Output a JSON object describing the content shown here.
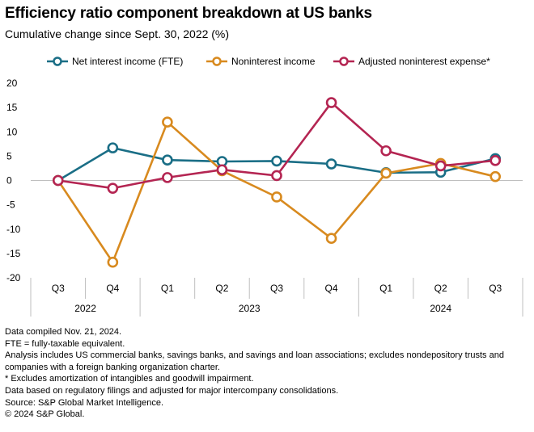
{
  "header": {
    "title": "Efficiency ratio component breakdown at US banks",
    "subtitle": "Cumulative change since Sept. 30, 2022 (%)"
  },
  "chart_data": {
    "type": "line",
    "title": "Efficiency ratio component breakdown at US banks",
    "subtitle": "Cumulative change since Sept. 30, 2022 (%)",
    "categories": [
      "Q3",
      "Q4",
      "Q1",
      "Q2",
      "Q3",
      "Q4",
      "Q1",
      "Q2",
      "Q3"
    ],
    "category_groups": [
      {
        "label": "2022",
        "count": 2
      },
      {
        "label": "2023",
        "count": 4
      },
      {
        "label": "2024",
        "count": 3
      }
    ],
    "ylim": [
      -20,
      20
    ],
    "yticks": [
      20,
      15,
      10,
      5,
      0,
      -5,
      -10,
      -15,
      -20
    ],
    "legend_position": "top",
    "grid": false,
    "series": [
      {
        "name": "Net interest income (FTE)",
        "color": "#1a6e86",
        "values": [
          0,
          6.7,
          4.2,
          3.9,
          4.0,
          3.4,
          1.6,
          1.7,
          4.5
        ]
      },
      {
        "name": "Noninterest income",
        "color": "#d88a1f",
        "values": [
          0,
          -16.8,
          12.0,
          2.0,
          -3.4,
          -11.9,
          1.5,
          3.5,
          0.8
        ]
      },
      {
        "name": "Adjusted noninterest expense*",
        "color": "#b42552",
        "values": [
          0,
          -1.6,
          0.6,
          2.2,
          1.0,
          16.0,
          6.1,
          3.0,
          4.1
        ]
      }
    ]
  },
  "notes": [
    "Data compiled Nov. 21, 2024.",
    "FTE = fully-taxable equivalent.",
    "Analysis includes US commercial banks, savings banks, and savings and loan associations; excludes nondepository trusts and companies with a foreign banking organization charter.",
    "* Excludes amortization of intangibles and goodwill impairment.",
    "Data based on regulatory filings and adjusted for major intercompany consolidations.",
    "Source: S&P Global Market Intelligence.",
    "© 2024 S&P Global."
  ]
}
